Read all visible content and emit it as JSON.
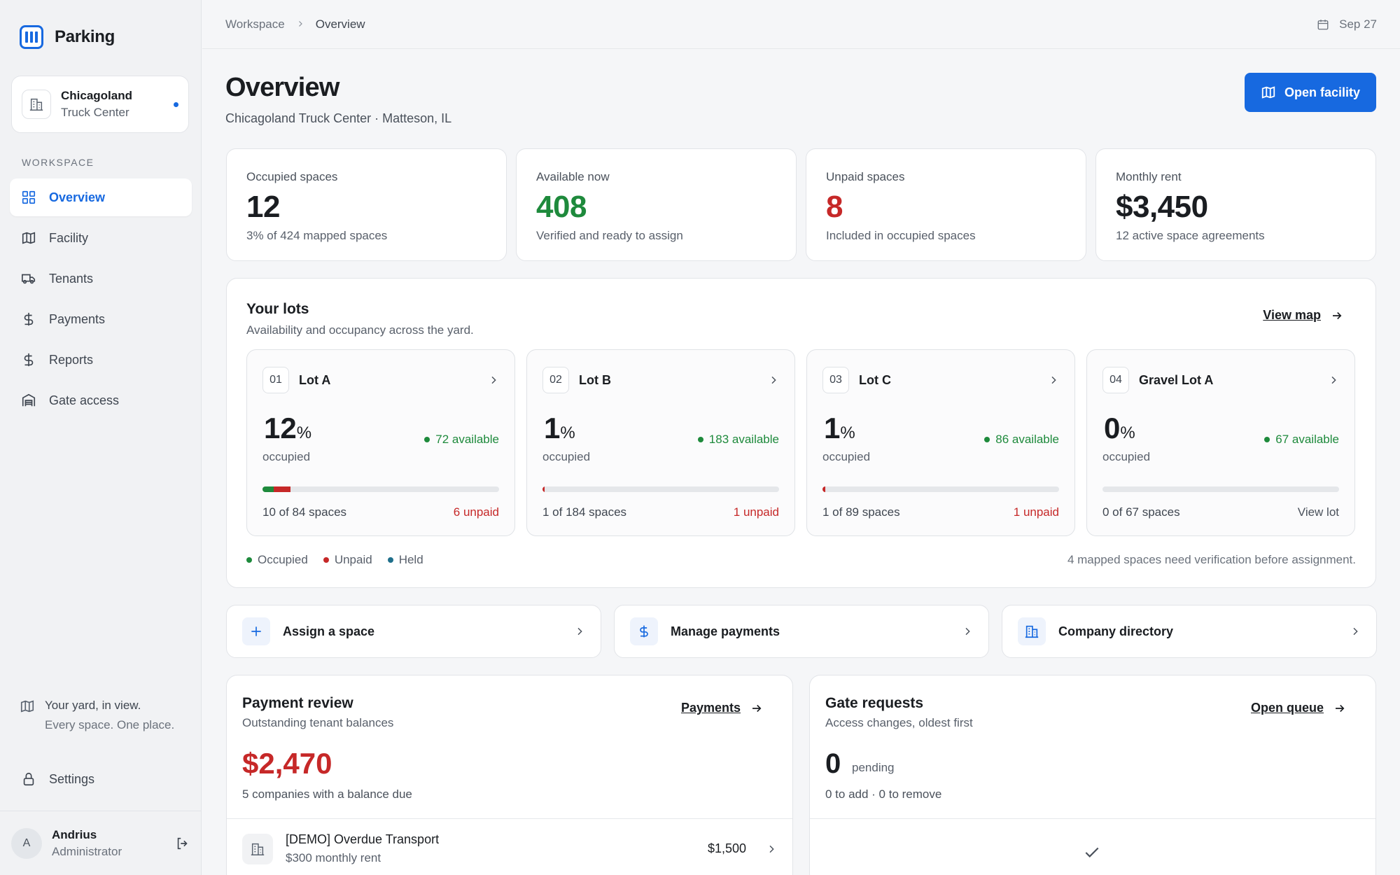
{
  "app": {
    "name": "Parking"
  },
  "facility": {
    "name": "Chicagoland",
    "subtitle": "Truck Center"
  },
  "sidebar": {
    "section_label": "WORKSPACE",
    "items": [
      {
        "label": "Overview",
        "icon": "grid-icon",
        "active": true
      },
      {
        "label": "Facility",
        "icon": "map-icon"
      },
      {
        "label": "Tenants",
        "icon": "truck-icon"
      },
      {
        "label": "Payments",
        "icon": "dollar-icon"
      },
      {
        "label": "Reports",
        "icon": "dollar-icon"
      },
      {
        "label": "Gate access",
        "icon": "garage-icon"
      }
    ],
    "tagline_1": "Your yard, in view.",
    "tagline_2": "Every space. One place.",
    "settings_label": "Settings"
  },
  "user": {
    "initial": "A",
    "name": "Andrius",
    "role": "Administrator"
  },
  "topbar": {
    "crumb_root": "Workspace",
    "crumb_current": "Overview",
    "date": "Sep 27"
  },
  "header": {
    "title": "Overview",
    "subtitle": "Chicagoland Truck Center · Matteson, IL",
    "button": "Open facility"
  },
  "kpis": [
    {
      "label": "Occupied spaces",
      "value": "12",
      "sub": "3% of 424 mapped spaces",
      "color": "#1a1d21"
    },
    {
      "label": "Available now",
      "value": "408",
      "sub": "Verified and ready to assign",
      "color": "#1e8a3c"
    },
    {
      "label": "Unpaid spaces",
      "value": "8",
      "sub": "Included in occupied spaces",
      "color": "#c62828"
    },
    {
      "label": "Monthly rent",
      "value": "$3,450",
      "sub": "12 active space agreements",
      "color": "#1a1d21"
    }
  ],
  "lots": {
    "title": "Your lots",
    "subtitle": "Availability and occupancy across the yard.",
    "view_map": "View map",
    "occupied_label": "occupied",
    "items": [
      {
        "num": "01",
        "name": "Lot A",
        "pct": "12",
        "available": "72 available",
        "count": "10 of 84 spaces",
        "status": "6 unpaid",
        "paid_fraction": 0.048,
        "unpaid_fraction": 0.071
      },
      {
        "num": "02",
        "name": "Lot B",
        "pct": "1",
        "available": "183 available",
        "count": "1 of 184 spaces",
        "status": "1 unpaid",
        "paid_fraction": 0,
        "unpaid_fraction": 0.005
      },
      {
        "num": "03",
        "name": "Lot C",
        "pct": "1",
        "available": "86 available",
        "count": "1 of 89 spaces",
        "status": "1 unpaid",
        "paid_fraction": 0,
        "unpaid_fraction": 0.011
      },
      {
        "num": "04",
        "name": "Gravel Lot A",
        "pct": "0",
        "available": "67 available",
        "count": "0 of 67 spaces",
        "status": "View lot",
        "paid_fraction": 0,
        "unpaid_fraction": 0
      }
    ],
    "legend": [
      {
        "label": "Occupied",
        "color": "#1e8a3c"
      },
      {
        "label": "Unpaid",
        "color": "#c62828"
      },
      {
        "label": "Held",
        "color": "#1f6f8b"
      }
    ],
    "note": "4 mapped spaces need verification before assignment."
  },
  "actions": [
    {
      "label": "Assign a space",
      "icon": "plus-icon"
    },
    {
      "label": "Manage payments",
      "icon": "dollar-icon"
    },
    {
      "label": "Company directory",
      "icon": "building-icon"
    }
  ],
  "payment_review": {
    "title": "Payment review",
    "subtitle": "Outstanding tenant balances",
    "link": "Payments",
    "amount": "$2,470",
    "note": "5 companies with a balance due",
    "rows": [
      {
        "title": "[DEMO] Overdue Transport",
        "sub": "$300 monthly rent",
        "amount": "$1,500"
      }
    ]
  },
  "gate_requests": {
    "title": "Gate requests",
    "subtitle": "Access changes, oldest first",
    "link": "Open queue",
    "count": "0",
    "count_label": "pending",
    "note": "0 to add · 0 to remove"
  }
}
